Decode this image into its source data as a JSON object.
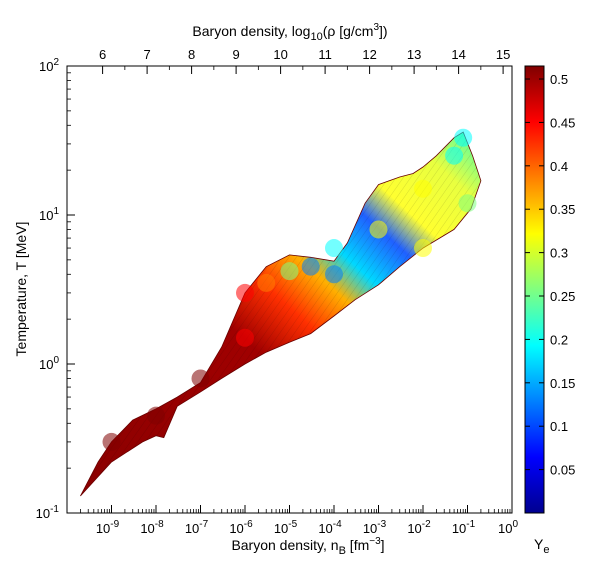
{
  "chart_data": {
    "type": "scatter",
    "title": "",
    "xlabel": "Baryon density, n_B [fm^-3]",
    "ylabel": "Temperature, T [MeV]",
    "x2label": "Baryon density, log10(ρ [g/cm^3])",
    "colorbar_label": "Y_e",
    "xscale": "log",
    "yscale": "log",
    "xlim": [
      1e-10,
      1
    ],
    "ylim": [
      0.1,
      100
    ],
    "x2lim": [
      5.2,
      15.2
    ],
    "x_ticks": [
      {
        "exp": "-9",
        "value": 1e-09
      },
      {
        "exp": "-8",
        "value": 1e-08
      },
      {
        "exp": "-7",
        "value": 1e-07
      },
      {
        "exp": "-6",
        "value": 1e-06
      },
      {
        "exp": "-5",
        "value": 1e-05
      },
      {
        "exp": "-4",
        "value": 0.0001
      },
      {
        "exp": "-3",
        "value": 0.001
      },
      {
        "exp": "-2",
        "value": 0.01
      },
      {
        "exp": "-1",
        "value": 0.1
      },
      {
        "exp": "0",
        "value": 1
      }
    ],
    "y_ticks": [
      {
        "exp": "-1",
        "value": 0.1
      },
      {
        "exp": "0",
        "value": 1
      },
      {
        "exp": "1",
        "value": 10
      },
      {
        "exp": "2",
        "value": 100
      }
    ],
    "x2_ticks": [
      "6",
      "7",
      "8",
      "9",
      "10",
      "11",
      "12",
      "13",
      "14",
      "15"
    ],
    "colorbar_ticks": [
      "0.05",
      "0.1",
      "0.15",
      "0.2",
      "0.25",
      "0.3",
      "0.35",
      "0.4",
      "0.45",
      "0.5"
    ],
    "colorbar_range": [
      0,
      0.515
    ],
    "colormap": [
      "#00008f",
      "#0000ff",
      "#0080ff",
      "#00ffff",
      "#80ff80",
      "#ffff00",
      "#ff8000",
      "#ff0000",
      "#800000"
    ],
    "grid": false,
    "surface_outline": [
      [
        2e-10,
        0.13
      ],
      [
        5e-10,
        0.22
      ],
      [
        1e-09,
        0.3
      ],
      [
        3e-09,
        0.42
      ],
      [
        1e-08,
        0.5
      ],
      [
        3e-08,
        0.6
      ],
      [
        1e-07,
        0.75
      ],
      [
        3e-07,
        1.3
      ],
      [
        1e-06,
        3.0
      ],
      [
        3e-06,
        4.5
      ],
      [
        1e-05,
        5.4
      ],
      [
        3e-05,
        5.2
      ],
      [
        0.0001,
        4.9
      ],
      [
        0.0002,
        6.5
      ],
      [
        0.0005,
        12
      ],
      [
        0.001,
        16
      ],
      [
        0.003,
        18
      ],
      [
        0.006,
        19
      ],
      [
        0.01,
        21
      ],
      [
        0.02,
        25
      ],
      [
        0.05,
        33
      ],
      [
        0.08,
        36
      ],
      [
        0.13,
        25
      ],
      [
        0.2,
        17
      ],
      [
        0.12,
        11
      ],
      [
        0.05,
        8
      ],
      [
        0.01,
        6
      ],
      [
        0.003,
        4.5
      ],
      [
        0.001,
        3.4
      ],
      [
        0.0003,
        2.7
      ],
      [
        0.0001,
        2.1
      ],
      [
        3e-05,
        1.6
      ],
      [
        1e-05,
        1.4
      ],
      [
        3e-06,
        1.2
      ],
      [
        1e-06,
        1.0
      ],
      [
        3e-07,
        0.8
      ],
      [
        1e-07,
        0.65
      ],
      [
        3e-08,
        0.52
      ],
      [
        1.5e-08,
        0.32
      ],
      [
        1e-08,
        0.33
      ],
      [
        5e-09,
        0.3
      ],
      [
        1e-09,
        0.22
      ],
      [
        2e-10,
        0.13
      ]
    ],
    "ye_points": [
      {
        "x": 1e-09,
        "y": 0.3,
        "ye": 0.5
      },
      {
        "x": 1e-08,
        "y": 0.45,
        "ye": 0.5
      },
      {
        "x": 1e-07,
        "y": 0.8,
        "ye": 0.5
      },
      {
        "x": 1e-06,
        "y": 1.5,
        "ye": 0.48
      },
      {
        "x": 1e-06,
        "y": 3.0,
        "ye": 0.42
      },
      {
        "x": 3e-06,
        "y": 3.5,
        "ye": 0.36
      },
      {
        "x": 1e-05,
        "y": 4.2,
        "ye": 0.26
      },
      {
        "x": 3e-05,
        "y": 4.5,
        "ye": 0.15
      },
      {
        "x": 0.0001,
        "y": 4.0,
        "ye": 0.12
      },
      {
        "x": 0.0001,
        "y": 6.0,
        "ye": 0.2
      },
      {
        "x": 0.001,
        "y": 8.0,
        "ye": 0.3
      },
      {
        "x": 0.01,
        "y": 15.0,
        "ye": 0.32
      },
      {
        "x": 0.01,
        "y": 6.0,
        "ye": 0.31
      },
      {
        "x": 0.05,
        "y": 25.0,
        "ye": 0.22
      },
      {
        "x": 0.08,
        "y": 33.0,
        "ye": 0.18
      },
      {
        "x": 0.1,
        "y": 12.0,
        "ye": 0.28
      }
    ]
  }
}
